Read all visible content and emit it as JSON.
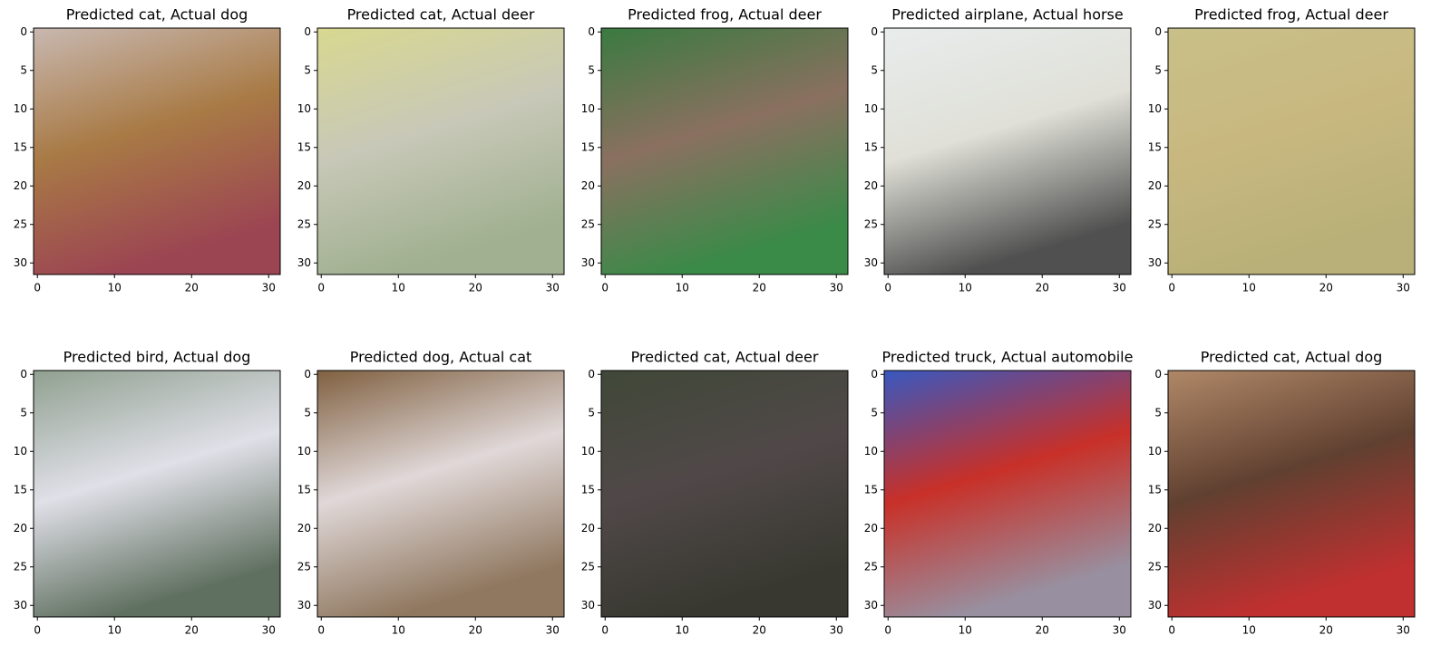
{
  "chart_data": [
    {
      "type": "image",
      "title": "Predicted cat, Actual dog",
      "xlim": [
        -0.5,
        31.5
      ],
      "ylim": [
        31.5,
        -0.5
      ],
      "xticks": [
        0,
        10,
        20,
        30
      ],
      "yticks": [
        0,
        5,
        10,
        15,
        20,
        25,
        30
      ],
      "colors": [
        "#c8b8b0",
        "#a87a45",
        "#9c4552"
      ]
    },
    {
      "type": "image",
      "title": "Predicted cat, Actual deer",
      "xlim": [
        -0.5,
        31.5
      ],
      "ylim": [
        31.5,
        -0.5
      ],
      "xticks": [
        0,
        10,
        20,
        30
      ],
      "yticks": [
        0,
        5,
        10,
        15,
        20,
        25,
        30
      ],
      "colors": [
        "#d8d890",
        "#c8c8b8",
        "#a0b090"
      ]
    },
    {
      "type": "image",
      "title": "Predicted frog, Actual deer",
      "xlim": [
        -0.5,
        31.5
      ],
      "ylim": [
        31.5,
        -0.5
      ],
      "xticks": [
        0,
        10,
        20,
        30
      ],
      "yticks": [
        0,
        5,
        10,
        15,
        20,
        25,
        30
      ],
      "colors": [
        "#3a7a40",
        "#8a7060",
        "#3a8a48"
      ]
    },
    {
      "type": "image",
      "title": "Predicted airplane, Actual horse",
      "xlim": [
        -0.5,
        31.5
      ],
      "ylim": [
        31.5,
        -0.5
      ],
      "xticks": [
        0,
        10,
        20,
        30
      ],
      "yticks": [
        0,
        5,
        10,
        15,
        20,
        25,
        30
      ],
      "colors": [
        "#e8ecec",
        "#e0e0d8",
        "#505050"
      ]
    },
    {
      "type": "image",
      "title": "Predicted frog, Actual deer",
      "xlim": [
        -0.5,
        31.5
      ],
      "ylim": [
        31.5,
        -0.5
      ],
      "xticks": [
        0,
        10,
        20,
        30
      ],
      "yticks": [
        0,
        5,
        10,
        15,
        20,
        25,
        30
      ],
      "colors": [
        "#c8c088",
        "#c8b880",
        "#b8b078"
      ]
    },
    {
      "type": "image",
      "title": "Predicted bird, Actual dog",
      "xlim": [
        -0.5,
        31.5
      ],
      "ylim": [
        31.5,
        -0.5
      ],
      "xticks": [
        0,
        10,
        20,
        30
      ],
      "yticks": [
        0,
        5,
        10,
        15,
        20,
        25,
        30
      ],
      "colors": [
        "#90a090",
        "#e0e0e8",
        "#607060"
      ]
    },
    {
      "type": "image",
      "title": "Predicted dog, Actual cat",
      "xlim": [
        -0.5,
        31.5
      ],
      "ylim": [
        31.5,
        -0.5
      ],
      "xticks": [
        0,
        10,
        20,
        30
      ],
      "yticks": [
        0,
        5,
        10,
        15,
        20,
        25,
        30
      ],
      "colors": [
        "#806040",
        "#e0d8d8",
        "#907860"
      ]
    },
    {
      "type": "image",
      "title": "Predicted cat, Actual deer",
      "xlim": [
        -0.5,
        31.5
      ],
      "ylim": [
        31.5,
        -0.5
      ],
      "xticks": [
        0,
        10,
        20,
        30
      ],
      "yticks": [
        0,
        5,
        10,
        15,
        20,
        25,
        30
      ],
      "colors": [
        "#404838",
        "#504848",
        "#383830"
      ]
    },
    {
      "type": "image",
      "title": "Predicted truck, Actual automobile",
      "xlim": [
        -0.5,
        31.5
      ],
      "ylim": [
        31.5,
        -0.5
      ],
      "xticks": [
        0,
        10,
        20,
        30
      ],
      "yticks": [
        0,
        5,
        10,
        15,
        20,
        25,
        30
      ],
      "colors": [
        "#3858c0",
        "#c83028",
        "#9890a0"
      ]
    },
    {
      "type": "image",
      "title": "Predicted cat, Actual dog",
      "xlim": [
        -0.5,
        31.5
      ],
      "ylim": [
        31.5,
        -0.5
      ],
      "xticks": [
        0,
        10,
        20,
        30
      ],
      "yticks": [
        0,
        5,
        10,
        15,
        20,
        25,
        30
      ],
      "colors": [
        "#b08868",
        "#604030",
        "#c03030"
      ]
    }
  ]
}
